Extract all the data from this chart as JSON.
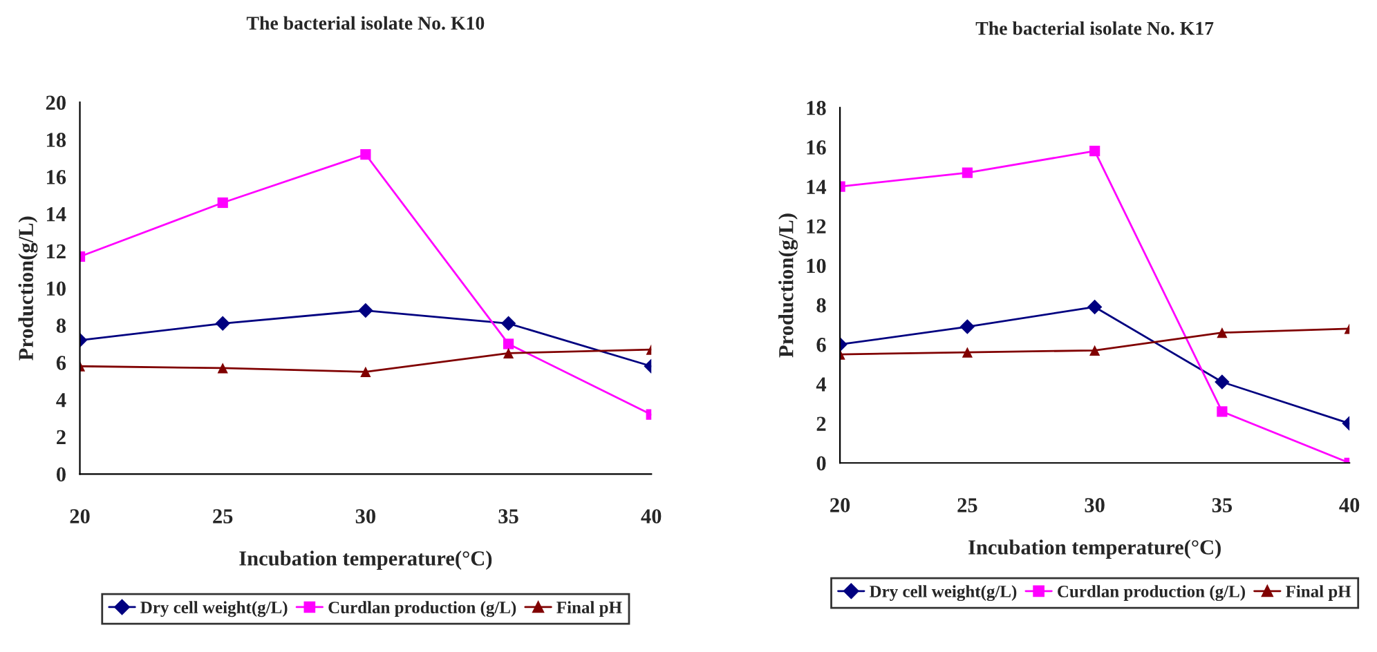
{
  "chart_data": [
    {
      "type": "line",
      "title": "The bacterial isolate No. K10",
      "xlabel": "Incubation temperature(°C)",
      "ylabel": "Production(g/L)",
      "x": [
        20,
        25,
        30,
        35,
        40
      ],
      "xlim": [
        20,
        40
      ],
      "xticks": [
        20,
        25,
        30,
        35,
        40
      ],
      "ylim": [
        0,
        20
      ],
      "yticks": [
        0,
        2,
        4,
        6,
        8,
        10,
        12,
        14,
        16,
        18,
        20
      ],
      "grid": false,
      "legend": "bottom",
      "line_style": "solid",
      "series": [
        {
          "name": "Dry cell weight(g/L)",
          "color": "#000080",
          "marker": "diamond",
          "values": [
            7.2,
            8.1,
            8.8,
            8.1,
            5.8
          ]
        },
        {
          "name": "Curdlan production (g/L)",
          "color": "#ff00ff",
          "marker": "square",
          "values": [
            11.7,
            14.6,
            17.2,
            7.0,
            3.2
          ]
        },
        {
          "name": "Final pH",
          "color": "#800000",
          "marker": "triangle",
          "values": [
            5.8,
            5.7,
            5.5,
            6.5,
            6.7
          ]
        }
      ]
    },
    {
      "type": "line",
      "title": "The bacterial isolate No. K17",
      "xlabel": "Incubation temperature(°C)",
      "ylabel": "Production(g/L)",
      "x": [
        20,
        25,
        30,
        35,
        40
      ],
      "xlim": [
        20,
        40
      ],
      "xticks": [
        20,
        25,
        30,
        35,
        40
      ],
      "ylim": [
        0,
        18
      ],
      "yticks": [
        0,
        2,
        4,
        6,
        8,
        10,
        12,
        14,
        16,
        18
      ],
      "grid": false,
      "legend": "bottom",
      "line_style": "solid",
      "series": [
        {
          "name": "Dry cell weight(g/L)",
          "color": "#000080",
          "marker": "diamond",
          "values": [
            6.0,
            6.9,
            7.9,
            4.1,
            2.0
          ]
        },
        {
          "name": "Curdlan production (g/L)",
          "color": "#ff00ff",
          "marker": "square",
          "values": [
            14.0,
            14.7,
            15.8,
            2.6,
            0.0
          ]
        },
        {
          "name": "Final pH",
          "color": "#800000",
          "marker": "triangle",
          "values": [
            5.5,
            5.6,
            5.7,
            6.6,
            6.8
          ]
        }
      ]
    }
  ]
}
